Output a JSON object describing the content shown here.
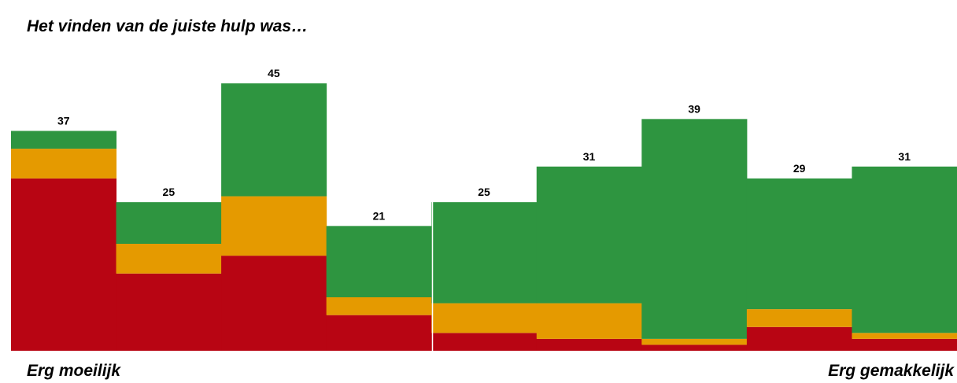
{
  "chart_data": {
    "type": "stacked_bar",
    "title": "Het vinden van de juiste hulp was…",
    "x_label_left": "Erg moeilijk",
    "x_label_right": "Erg gemakkelijk",
    "series": [
      {
        "color": "#b80513",
        "values": [
          29,
          13,
          16,
          6,
          3,
          2,
          1,
          4,
          2
        ]
      },
      {
        "color": "#e59a00",
        "values": [
          5,
          5,
          10,
          3,
          5,
          6,
          1,
          3,
          1
        ]
      },
      {
        "color": "#2e9540",
        "values": [
          3,
          7,
          19,
          12,
          17,
          23,
          37,
          22,
          28
        ]
      }
    ],
    "totals": [
      37,
      25,
      45,
      21,
      25,
      31,
      39,
      29,
      31
    ],
    "ylim": [
      0,
      45
    ]
  }
}
